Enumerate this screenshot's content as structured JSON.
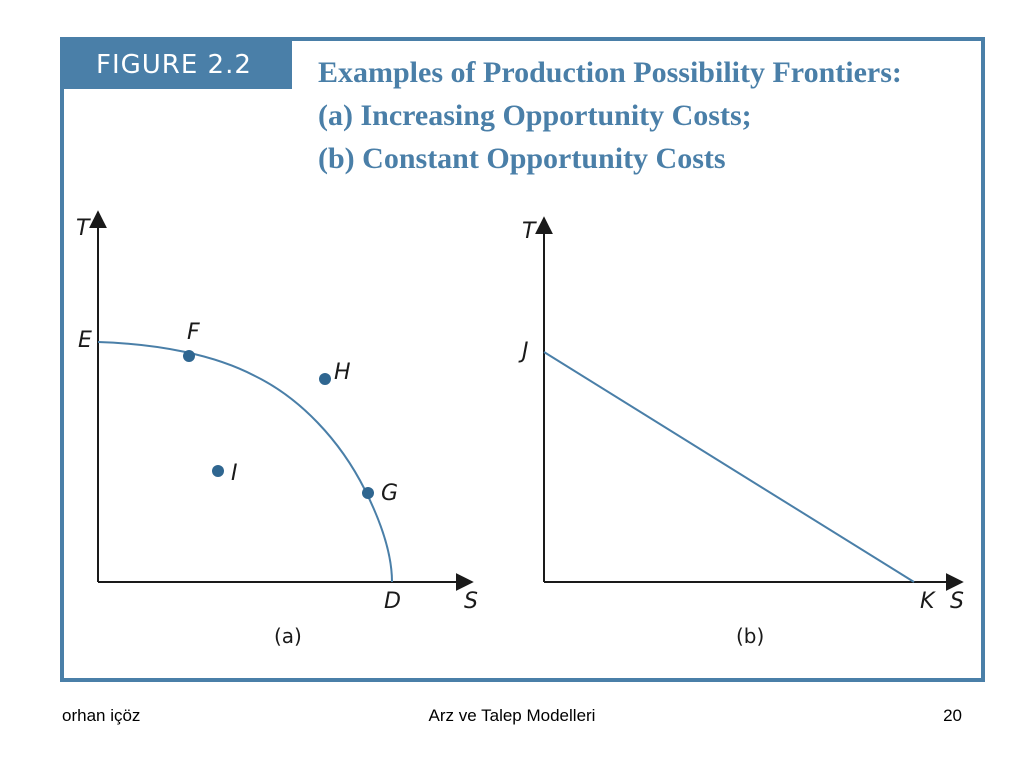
{
  "figure": {
    "label": "FIGURE 2.2",
    "title_lines": [
      "Examples of Production Possibility Frontiers:",
      "(a) Increasing Opportunity Costs;",
      "(b) Constant Opportunity Costs"
    ],
    "accent_color": "#4a7fa8"
  },
  "panel_a": {
    "y_axis_label": "T",
    "x_axis_label": "S",
    "caption": "(a)",
    "points": {
      "E": "E",
      "F": "F",
      "H": "H",
      "I": "I",
      "G": "G",
      "D": "D"
    }
  },
  "panel_b": {
    "y_axis_label": "T",
    "x_axis_label": "S",
    "caption": "(b)",
    "points": {
      "J": "J",
      "K": "K"
    }
  },
  "footer": {
    "author": "orhan içöz",
    "title": "Arz ve Talep Modelleri",
    "page": "20"
  }
}
